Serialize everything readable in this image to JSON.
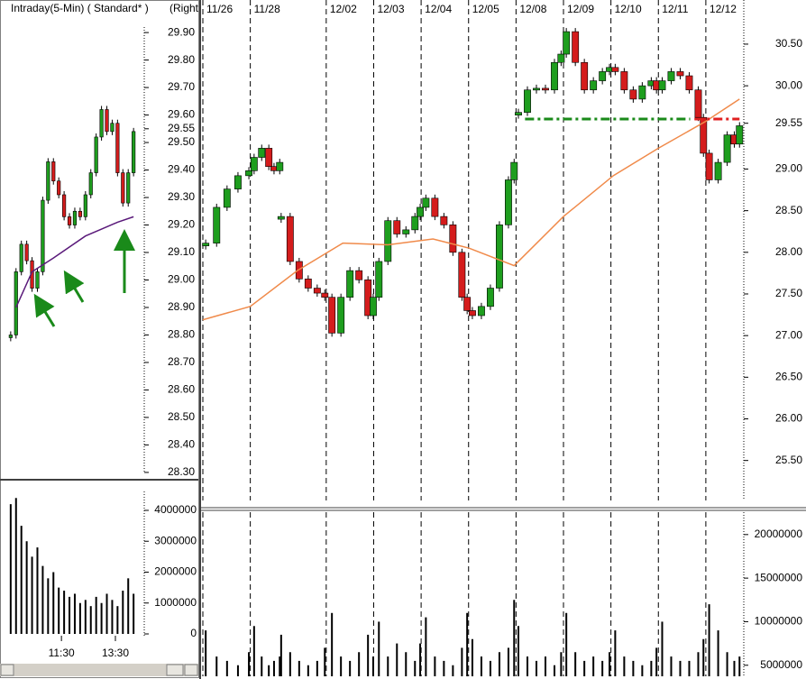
{
  "header": {
    "left_title": "Intraday(5-Min) ( Standard* )",
    "right_title": "(Right"
  },
  "chart_data": [
    {
      "type": "candlestick",
      "x": [
        0,
        1,
        2,
        3,
        4,
        5,
        6,
        7,
        8,
        9,
        10,
        11,
        12,
        13,
        14,
        15,
        16,
        17,
        18,
        19,
        20,
        21,
        22,
        23
      ],
      "xlim": [
        -2,
        25
      ],
      "ylim": [
        28.28,
        29.92
      ],
      "yticks": [
        {
          "value": 29.9,
          "label": "29.90"
        },
        {
          "value": 29.8,
          "label": "29.80"
        },
        {
          "value": 29.7,
          "label": "29.70"
        },
        {
          "value": 29.6,
          "label": "29.60"
        },
        29.55,
        {
          "value": 29.5,
          "label": "29.50"
        },
        {
          "value": 29.4,
          "label": "29.40"
        },
        {
          "value": 29.3,
          "label": "29.30"
        },
        {
          "value": 29.2,
          "label": "29.20"
        },
        {
          "value": 29.1,
          "label": "29.10"
        },
        {
          "value": 29.0,
          "label": "29.00"
        },
        {
          "value": 28.9,
          "label": "28.90"
        },
        {
          "value": 28.8,
          "label": "28.80"
        },
        {
          "value": 28.7,
          "label": "28.70"
        },
        {
          "value": 28.6,
          "label": "28.60"
        },
        {
          "value": 28.5,
          "label": "28.50"
        },
        {
          "value": 28.4,
          "label": "28.40"
        },
        {
          "value": 28.3,
          "label": "28.30"
        }
      ],
      "series": [
        {
          "up_color": "#1e9e1e",
          "down_color": "#d41c1c",
          "values": [
            28.8,
            29.03,
            29.13,
            29.07,
            28.97,
            29.03,
            29.29,
            29.43,
            29.36,
            29.31,
            29.23,
            29.2,
            29.25,
            29.23,
            29.31,
            29.39,
            29.52,
            29.62,
            29.54,
            29.57,
            29.39,
            29.28,
            29.39,
            29.54
          ]
        },
        {
          "color": "#5a1a7a",
          "x": [
            1,
            4,
            8,
            14,
            20,
            23
          ],
          "values": [
            28.9,
            29.03,
            29.08,
            29.16,
            29.21,
            29.23
          ]
        }
      ]
    },
    {
      "type": "bar",
      "x": [
        0,
        1,
        2,
        3,
        4,
        5,
        6,
        7,
        8,
        9,
        10,
        11,
        12,
        13,
        14,
        15,
        16,
        17,
        18,
        19,
        20,
        21,
        22,
        23
      ],
      "xlim": [
        -2,
        25
      ],
      "ylim": [
        0,
        4700000
      ],
      "xticks": [
        {
          "value": 9.5,
          "label": "11:30"
        },
        {
          "value": 19.6,
          "label": "13:30"
        }
      ],
      "yticks": [
        4000000,
        3000000,
        2000000,
        1000000,
        0
      ],
      "series": [
        {
          "color": "#000000",
          "values": [
            4200000,
            4400000,
            3500000,
            3000000,
            2500000,
            2800000,
            2200000,
            1800000,
            2000000,
            1500000,
            1400000,
            1200000,
            1300000,
            1000000,
            1100000,
            900000,
            1200000,
            1000000,
            1300000,
            1100000,
            900000,
            1400000,
            1800000,
            1300000
          ]
        }
      ]
    },
    {
      "type": "candlestick",
      "x": [
        0.06,
        0.29,
        0.51,
        0.74,
        0.97,
        1.08,
        1.24,
        1.39,
        1.5,
        1.62,
        1.64,
        1.65,
        1.84,
        2.03,
        2.22,
        2.41,
        2.57,
        2.72,
        2.91,
        3.1,
        3.29,
        3.48,
        3.59,
        3.71,
        3.9,
        4.09,
        4.28,
        4.47,
        4.58,
        4.7,
        4.89,
        5.08,
        5.27,
        5.46,
        5.57,
        5.68,
        5.87,
        6.06,
        6.25,
        6.44,
        6.56,
        6.6,
        6.65,
        6.84,
        7.03,
        7.22,
        7.41,
        7.55,
        7.66,
        7.85,
        8.04,
        8.23,
        8.42,
        8.57,
        8.69,
        8.88,
        9.07,
        9.26,
        9.45,
        9.56,
        9.68,
        9.87,
        10.06,
        10.25,
        10.44,
        10.55,
        10.67,
        10.86,
        11.05,
        11.2,
        11.31
      ],
      "xlim": [
        0,
        11.4
      ],
      "ylim": [
        25.02,
        31.03
      ],
      "xticks": [
        {
          "value": 0,
          "label": "11/26"
        },
        {
          "value": 1.0,
          "label": "11/28"
        },
        {
          "value": 2.6,
          "label": "12/02"
        },
        {
          "value": 3.6,
          "label": "12/03"
        },
        {
          "value": 4.6,
          "label": "12/04"
        },
        {
          "value": 5.6,
          "label": "12/05"
        },
        {
          "value": 6.6,
          "label": "12/08"
        },
        {
          "value": 7.6,
          "label": "12/09"
        },
        {
          "value": 8.6,
          "label": "12/10"
        },
        {
          "value": 9.6,
          "label": "12/11"
        },
        {
          "value": 10.6,
          "label": "12/12"
        }
      ],
      "yticks": [
        {
          "value": 30.5,
          "label": "30.50"
        },
        {
          "value": 30.0,
          "label": "30.00"
        },
        29.55,
        {
          "value": 29.0,
          "label": "29.00"
        },
        {
          "value": 28.5,
          "label": "28.50"
        },
        {
          "value": 28.0,
          "label": "28.00"
        },
        {
          "value": 27.5,
          "label": "27.50"
        },
        {
          "value": 27.0,
          "label": "27.00"
        },
        {
          "value": 26.5,
          "label": "26.50"
        },
        {
          "value": 26.0,
          "label": "26.00"
        },
        {
          "value": 25.5,
          "label": "25.50"
        }
      ],
      "series": [
        {
          "up_color": "#1e9e1e",
          "down_color": "#d41c1c",
          "values": [
            28.11,
            28.54,
            28.76,
            28.92,
            28.98,
            29.14,
            29.25,
            29.03,
            28.98,
            29.08,
            null,
            28.43,
            27.89,
            27.68,
            27.57,
            27.51,
            27.46,
            27.03,
            27.46,
            27.78,
            27.67,
            27.24,
            27.46,
            27.89,
            28.38,
            28.22,
            28.27,
            28.43,
            28.54,
            28.65,
            28.43,
            28.33,
            28.0,
            27.46,
            27.3,
            27.24,
            27.35,
            27.57,
            28.33,
            28.87,
            29.08,
            null,
            29.68,
            29.95,
            29.97,
            29.95,
            30.28,
            30.38,
            30.65,
            30.28,
            29.95,
            30.06,
            30.17,
            30.22,
            30.17,
            29.95,
            29.84,
            30.0,
            30.06,
            29.95,
            30.06,
            30.17,
            30.12,
            29.95,
            29.62,
            29.19,
            28.87,
            29.08,
            29.41,
            29.3,
            29.52
          ]
        },
        {
          "color": "#f08a4a",
          "x": [
            0,
            1.0,
            1.99,
            2.95,
            3.9,
            4.85,
            5.61,
            6.56,
            7.6,
            8.65,
            9.6,
            10.59,
            11.31
          ],
          "values": [
            27.19,
            27.35,
            27.78,
            28.11,
            28.09,
            28.16,
            28.05,
            27.84,
            28.43,
            28.92,
            29.25,
            29.57,
            29.84
          ]
        }
      ],
      "levels": [
        {
          "value": 29.6,
          "x": [
            6.79,
            10.27
          ],
          "color": "#1a8a1a"
        },
        {
          "value": 29.6,
          "x": [
            10.36,
            11.31
          ],
          "color": "#e02020"
        }
      ]
    },
    {
      "type": "bar",
      "x": [
        0.06,
        0.29,
        0.51,
        0.74,
        0.97,
        1.08,
        1.24,
        1.39,
        1.5,
        1.62,
        1.64,
        1.65,
        1.84,
        2.03,
        2.22,
        2.41,
        2.57,
        2.72,
        2.91,
        3.1,
        3.29,
        3.48,
        3.59,
        3.71,
        3.9,
        4.09,
        4.28,
        4.47,
        4.58,
        4.7,
        4.89,
        5.08,
        5.27,
        5.46,
        5.57,
        5.68,
        5.87,
        6.06,
        6.25,
        6.44,
        6.56,
        6.6,
        6.65,
        6.84,
        7.03,
        7.22,
        7.41,
        7.55,
        7.66,
        7.85,
        8.04,
        8.23,
        8.42,
        8.57,
        8.69,
        8.88,
        9.07,
        9.26,
        9.45,
        9.56,
        9.68,
        9.87,
        10.06,
        10.25,
        10.44,
        10.55,
        10.67,
        10.86,
        11.05,
        11.2,
        11.31
      ],
      "xlim": [
        0,
        11.4
      ],
      "ylim": [
        3730000,
        22570000
      ],
      "yticks": [
        20000000,
        15000000,
        10000000,
        5000000
      ],
      "series": [
        {
          "color": "#000000",
          "values": [
            9000000,
            6000000,
            5500000,
            5000000,
            6500000,
            9500000,
            6000000,
            5000000,
            5500000,
            6000000,
            null,
            8500000,
            6500000,
            5500000,
            5000000,
            5500000,
            7000000,
            11000000,
            6000000,
            5500000,
            6500000,
            8500000,
            6000000,
            10000000,
            6000000,
            7500000,
            6500000,
            5500000,
            7500000,
            10500000,
            6000000,
            5500000,
            5000000,
            7000000,
            11000000,
            8000000,
            6000000,
            5500000,
            6500000,
            7000000,
            12500000,
            null,
            9500000,
            6000000,
            5500000,
            6000000,
            5000000,
            6500000,
            11000000,
            6500000,
            5500000,
            6000000,
            5500000,
            6500000,
            9000000,
            6000000,
            5500000,
            5000000,
            5500000,
            7000000,
            10000000,
            6000000,
            5500000,
            5500000,
            6500000,
            8000000,
            12000000,
            9000000,
            6500000,
            5500000,
            6000000
          ]
        }
      ]
    }
  ]
}
